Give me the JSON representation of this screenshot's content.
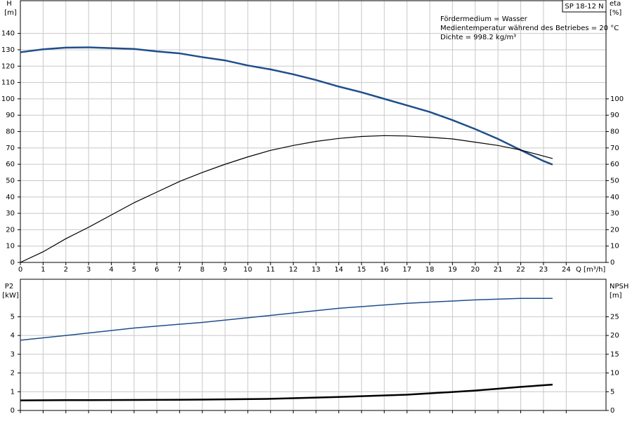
{
  "chart_data": [
    {
      "type": "line",
      "title": "SP 18-12 N",
      "annotations": [
        "Fördermedium = Wasser",
        "Medientemperatur während des Betriebes = 20 °C",
        "Dichte = 998.2 kg/m³"
      ],
      "x_label": "Q [m³/h]",
      "y_label": "H",
      "y_unit": "[m]",
      "y2_label": "eta",
      "y2_unit": "[%]",
      "x": [
        0,
        1,
        2,
        3,
        4,
        5,
        6,
        7,
        8,
        9,
        10,
        11,
        12,
        13,
        14,
        15,
        16,
        17,
        18,
        19,
        20,
        21,
        22,
        23,
        23.4
      ],
      "series": [
        {
          "color": "#1f4e8c",
          "width": 2.5,
          "axis": "y",
          "values": [
            128.5,
            130.3,
            131.3,
            131.5,
            131,
            130.5,
            129,
            127.8,
            125.5,
            123.5,
            120.4,
            118,
            115,
            111.5,
            107.5,
            104,
            100,
            96,
            92,
            87,
            81.5,
            75.5,
            68.7,
            62,
            59.8
          ]
        },
        {
          "color": "#000000",
          "width": 1.2,
          "axis": "y2",
          "values": [
            0,
            6.5,
            14.5,
            21.5,
            29,
            36.5,
            43,
            49.5,
            55,
            60,
            64.5,
            68.5,
            71.5,
            74,
            75.8,
            77,
            77.5,
            77.3,
            76.5,
            75.5,
            73.5,
            71.5,
            68.7,
            65,
            63.5
          ]
        }
      ],
      "xlim": [
        0,
        25.75
      ],
      "xticks": [
        0,
        1,
        2,
        3,
        4,
        5,
        6,
        7,
        8,
        9,
        10,
        11,
        12,
        13,
        14,
        15,
        16,
        17,
        18,
        19,
        20,
        21,
        22,
        23,
        24
      ],
      "ylim": [
        0,
        160
      ],
      "yticks": [
        0,
        10,
        20,
        30,
        40,
        50,
        60,
        70,
        80,
        90,
        100,
        110,
        120,
        130,
        140
      ],
      "y2lim": [
        0,
        160
      ],
      "y2ticks": [
        0,
        10,
        20,
        30,
        40,
        50,
        60,
        70,
        80,
        90,
        100
      ],
      "grid": true
    },
    {
      "type": "line",
      "y_label": "P2",
      "y_unit": "[kW]",
      "y2_label": "NPSH",
      "y2_unit": "[m]",
      "x": [
        0,
        2,
        5,
        8,
        11,
        14,
        17,
        20,
        22,
        23.4
      ],
      "series": [
        {
          "color": "#1f4e8c",
          "width": 1.5,
          "axis": "y",
          "values": [
            3.75,
            4.0,
            4.4,
            4.7,
            5.07,
            5.45,
            5.72,
            5.9,
            5.98,
            5.98
          ]
        },
        {
          "color": "#000000",
          "width": 2.5,
          "axis": "y2",
          "values": [
            2.7,
            2.75,
            2.8,
            2.9,
            3.1,
            3.6,
            4.2,
            5.3,
            6.3,
            6.9
          ]
        }
      ],
      "xlim": [
        0,
        25.75
      ],
      "xticks": [
        0,
        1,
        2,
        3,
        4,
        5,
        6,
        7,
        8,
        9,
        10,
        11,
        12,
        13,
        14,
        15,
        16,
        17,
        18,
        19,
        20,
        21,
        22,
        23,
        24
      ],
      "xtick_labels": false,
      "ylim": [
        0,
        7
      ],
      "yticks": [
        0,
        1,
        2,
        3,
        4,
        5
      ],
      "y2lim": [
        0,
        35
      ],
      "y2ticks": [
        0,
        5,
        10,
        15,
        20,
        25
      ],
      "grid": true
    }
  ]
}
